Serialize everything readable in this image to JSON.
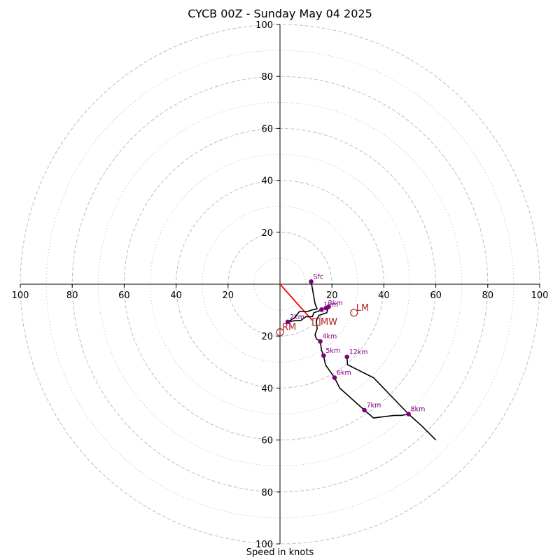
{
  "chart_data": {
    "type": "hodograph",
    "title": "CYCB 00Z - Sunday May 04 2025",
    "xlabel": "Speed in knots",
    "units": "knots",
    "range": [
      -100,
      100
    ],
    "ring_major": [
      20,
      40,
      60,
      80,
      100
    ],
    "ring_minor": [
      10,
      30,
      50,
      70,
      90
    ],
    "tick_values": [
      20,
      40,
      60,
      80,
      100
    ],
    "grid": true,
    "hodograph_trace": [
      [
        12,
        1
      ],
      [
        13.5,
        -7.5
      ],
      [
        14.3,
        -9.5
      ],
      [
        12,
        -10
      ],
      [
        10.7,
        -10.5
      ],
      [
        7.5,
        -10.5
      ],
      [
        5.5,
        -13
      ],
      [
        3,
        -14.5
      ],
      [
        6,
        -14
      ],
      [
        8,
        -14
      ],
      [
        10,
        -12.5
      ],
      [
        12.5,
        -12.5
      ],
      [
        13,
        -11
      ],
      [
        14.5,
        -10.5
      ],
      [
        16,
        -9.8
      ],
      [
        17.7,
        -9.2
      ],
      [
        18.7,
        -8.7
      ],
      [
        18,
        -11
      ],
      [
        15,
        -12
      ],
      [
        14,
        -14
      ],
      [
        14.3,
        -17
      ],
      [
        13.5,
        -19.5
      ],
      [
        14,
        -21
      ],
      [
        15.5,
        -22
      ],
      [
        16,
        -25.5
      ],
      [
        16.8,
        -27.5
      ],
      [
        17.5,
        -31
      ],
      [
        21,
        -36
      ],
      [
        23,
        -40
      ],
      [
        32.5,
        -48.5
      ],
      [
        36,
        -51.5
      ],
      [
        44,
        -50.5
      ],
      [
        47,
        -50.5
      ],
      [
        49.5,
        -50
      ],
      [
        54.5,
        -54.5
      ],
      [
        60,
        -60
      ]
    ],
    "upper_trace": [
      [
        49.5,
        -50
      ],
      [
        36,
        -36
      ],
      [
        26,
        -31
      ],
      [
        25.8,
        -28
      ]
    ],
    "height_markers": [
      {
        "label": "Sfc",
        "u": 12,
        "v": 1
      },
      {
        "label": "1km",
        "u": 16,
        "v": -9.8
      },
      {
        "label": "3km",
        "u": 17.7,
        "v": -9.2
      },
      {
        "label": "",
        "u": 18.7,
        "v": -8.7
      },
      {
        "label": "2km",
        "u": 3,
        "v": -14.5
      },
      {
        "label": "4km",
        "u": 15.5,
        "v": -22
      },
      {
        "label": "5km",
        "u": 16.8,
        "v": -27.5
      },
      {
        "label": "6km",
        "u": 21,
        "v": -36
      },
      {
        "label": "7km",
        "u": 32.5,
        "v": -48.5
      },
      {
        "label": "8km",
        "u": 49.5,
        "v": -50
      },
      {
        "label": "12km",
        "u": 25.8,
        "v": -28
      }
    ],
    "storm_motion": {
      "mean_wind": {
        "label": "MW",
        "u": 14,
        "v": -14.5
      },
      "left_mover": {
        "label": "LM",
        "u": 28.5,
        "v": -11
      },
      "right_mover": {
        "label": "RM",
        "u": 0,
        "v": -18.5
      },
      "shear_vector": {
        "u": 12.5,
        "v": -14
      }
    },
    "colors": {
      "trace": "#000000",
      "marker": "#800080",
      "storm_motion": "#b22222",
      "shear_vector": "#ff0000",
      "grid": "#bdbdbd"
    }
  }
}
